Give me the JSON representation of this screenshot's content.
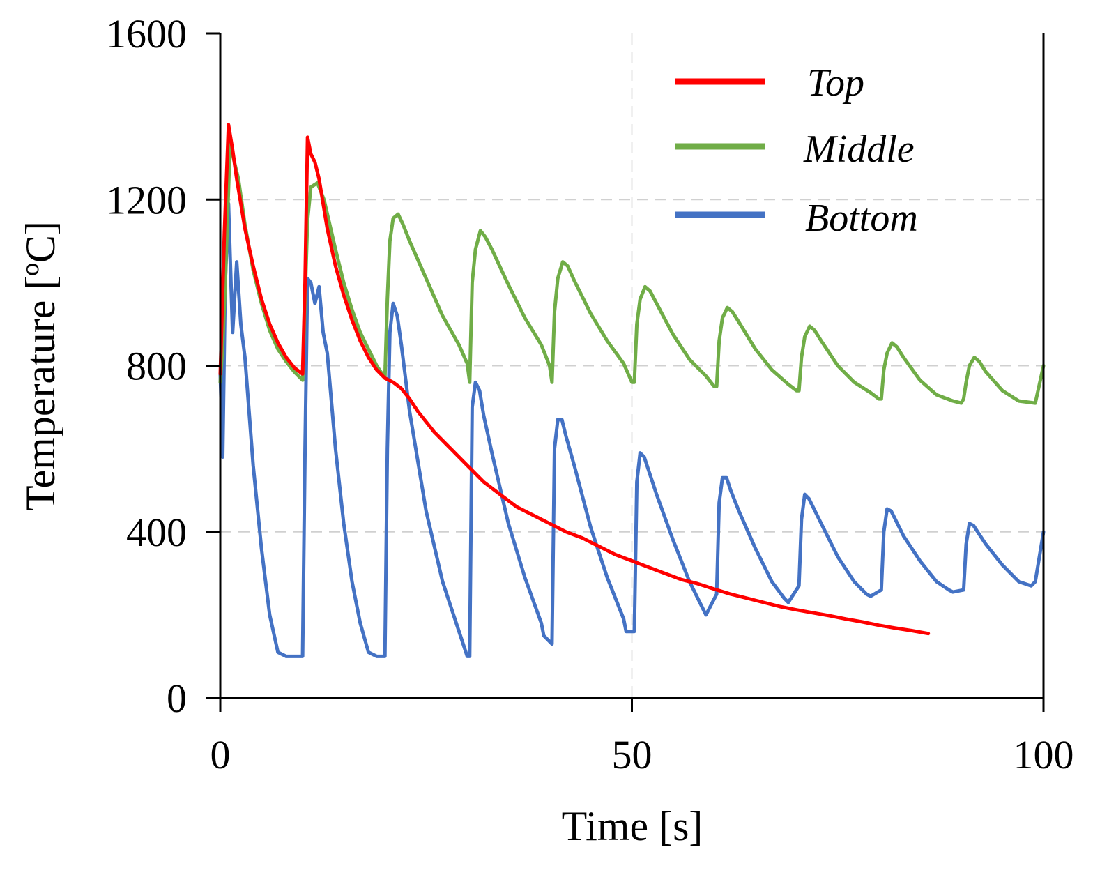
{
  "chart_data": {
    "type": "line",
    "title": "",
    "xlabel": "Time [s]",
    "ylabel": "Temperature [ºC]",
    "xlim": [
      0,
      100
    ],
    "ylim": [
      0,
      1600
    ],
    "xticks": [
      0,
      50,
      100
    ],
    "yticks": [
      0,
      400,
      800,
      1200,
      1600
    ],
    "grid": "dashed, light gray, at x = 50, 100 and y = 400, 800, 1200",
    "legend_position": "top-right",
    "series": [
      {
        "name": "Top",
        "color": "#ff0000",
        "x": [
          0,
          0.5,
          1,
          1.5,
          2,
          3,
          4,
          5,
          6,
          7,
          8,
          9,
          10,
          10.3,
          10.6,
          11,
          11.5,
          12,
          13,
          14,
          15,
          16,
          17,
          18,
          19,
          20,
          21,
          22,
          23,
          24,
          26,
          28,
          30,
          32,
          34,
          36,
          38,
          40,
          42,
          44,
          46,
          48,
          50,
          52,
          54,
          56,
          58,
          60,
          62,
          64,
          66,
          68,
          70,
          72,
          74,
          76,
          78,
          80,
          82,
          84,
          86
        ],
        "y": [
          780,
          1120,
          1380,
          1320,
          1250,
          1130,
          1040,
          960,
          900,
          855,
          820,
          795,
          780,
          1000,
          1350,
          1310,
          1290,
          1250,
          1130,
          1040,
          970,
          910,
          860,
          820,
          790,
          770,
          760,
          745,
          720,
          690,
          640,
          600,
          560,
          520,
          490,
          460,
          440,
          420,
          400,
          385,
          365,
          345,
          330,
          315,
          300,
          285,
          275,
          262,
          250,
          240,
          230,
          220,
          212,
          205,
          198,
          190,
          183,
          175,
          168,
          162,
          155
        ]
      },
      {
        "name": "Middle",
        "color": "#70ad47",
        "x": [
          0,
          0.3,
          0.6,
          1.2,
          1.6,
          2.2,
          3,
          4,
          5,
          6,
          7,
          8,
          9,
          10,
          10.3,
          10.6,
          11,
          11.8,
          12.6,
          14,
          15,
          16,
          17,
          18,
          19,
          20,
          20.3,
          20.6,
          21,
          21.6,
          22.2,
          23,
          25,
          27,
          29,
          30,
          30.3,
          30.6,
          31,
          31.6,
          32.2,
          33,
          35,
          37,
          39,
          40,
          40.3,
          40.6,
          41,
          41.6,
          42.2,
          43,
          45,
          47,
          49,
          50,
          50.3,
          50.6,
          51,
          51.6,
          52.2,
          53,
          55,
          57,
          59,
          60,
          60.3,
          60.6,
          61,
          61.6,
          62.2,
          63,
          65,
          67,
          69,
          70,
          70.3,
          70.6,
          71,
          71.6,
          72.2,
          73,
          75,
          77,
          79,
          80,
          80.3,
          80.6,
          81,
          81.6,
          82.2,
          83,
          85,
          87,
          89,
          90,
          90.3,
          90.6,
          91,
          91.6,
          92.2,
          93,
          95,
          97,
          99,
          100
        ],
        "y": [
          760,
          850,
          1000,
          1340,
          1300,
          1250,
          1140,
          1030,
          950,
          885,
          840,
          810,
          785,
          765,
          960,
          1150,
          1230,
          1240,
          1200,
          1080,
          1000,
          935,
          880,
          840,
          800,
          770,
          960,
          1100,
          1155,
          1165,
          1140,
          1100,
          1010,
          920,
          850,
          805,
          760,
          1000,
          1080,
          1125,
          1110,
          1080,
          995,
          915,
          850,
          800,
          760,
          930,
          1010,
          1050,
          1040,
          1005,
          925,
          860,
          805,
          760,
          760,
          900,
          960,
          990,
          980,
          950,
          875,
          815,
          775,
          750,
          750,
          860,
          915,
          940,
          930,
          905,
          840,
          790,
          755,
          740,
          740,
          820,
          870,
          895,
          885,
          860,
          800,
          760,
          735,
          720,
          720,
          790,
          830,
          855,
          845,
          820,
          765,
          730,
          715,
          710,
          720,
          760,
          800,
          820,
          810,
          785,
          740,
          715,
          710,
          800
        ]
      },
      {
        "name": "Bottom",
        "color": "#4472c4",
        "x": [
          0,
          0.3,
          0.6,
          1,
          1.2,
          1.5,
          2,
          2.5,
          3,
          4,
          5,
          6,
          7,
          8,
          9,
          10,
          10.3,
          10.6,
          11,
          11.5,
          12,
          12.5,
          13,
          14,
          15,
          16,
          17,
          18,
          19,
          20,
          20.3,
          20.6,
          21,
          21.5,
          22,
          23,
          25,
          27,
          29,
          30,
          30.3,
          30.6,
          31,
          31.5,
          32,
          33,
          35,
          37,
          39,
          39.3,
          40.3,
          40.6,
          41,
          41.5,
          42,
          43,
          45,
          47,
          49,
          49.3,
          50.3,
          50.6,
          51,
          51.5,
          52,
          53,
          55,
          57,
          58.5,
          59,
          60.3,
          60.6,
          61,
          61.5,
          62,
          63,
          65,
          67,
          68.5,
          69,
          70.3,
          70.6,
          71,
          71.5,
          72,
          73,
          75,
          77,
          78.5,
          79,
          80.3,
          80.6,
          81,
          81.5,
          82,
          83,
          85,
          87,
          88.5,
          89,
          90.3,
          90.6,
          91,
          91.5,
          92,
          93,
          95,
          97,
          98.5,
          99,
          100
        ],
        "y": [
          780,
          580,
          1000,
          1190,
          1060,
          880,
          1050,
          900,
          820,
          560,
          360,
          200,
          110,
          100,
          100,
          100,
          600,
          1010,
          1000,
          950,
          990,
          880,
          830,
          600,
          420,
          280,
          180,
          110,
          100,
          100,
          600,
          880,
          950,
          920,
          850,
          690,
          450,
          280,
          160,
          100,
          100,
          700,
          760,
          740,
          680,
          590,
          420,
          290,
          180,
          150,
          130,
          600,
          670,
          670,
          630,
          560,
          410,
          290,
          190,
          160,
          160,
          520,
          590,
          580,
          550,
          490,
          380,
          280,
          220,
          200,
          250,
          470,
          530,
          530,
          500,
          450,
          360,
          280,
          240,
          230,
          270,
          430,
          490,
          480,
          460,
          420,
          340,
          280,
          250,
          245,
          260,
          400,
          455,
          450,
          430,
          390,
          330,
          280,
          260,
          255,
          260,
          370,
          420,
          415,
          400,
          370,
          320,
          280,
          270,
          280,
          400
        ]
      }
    ]
  }
}
